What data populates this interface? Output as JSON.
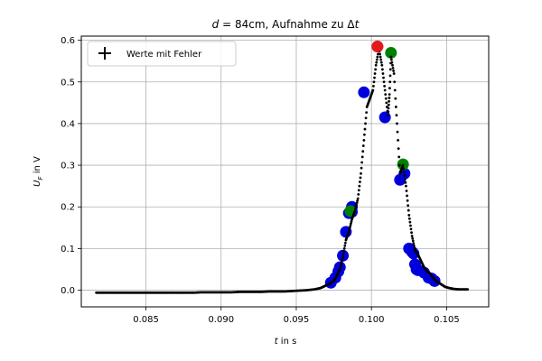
{
  "chart_data": {
    "type": "scatter",
    "title": {
      "var": "d",
      "text": " = 84cm, Aufnahme zu Δ",
      "var2": "t"
    },
    "xlabel": {
      "var": "t",
      "text": " in s"
    },
    "ylabel": {
      "var": "U",
      "sub": "F",
      "text": " in V"
    },
    "xlim": [
      0.0807,
      0.1078
    ],
    "ylim": [
      -0.04,
      0.61
    ],
    "xticks": [
      0.085,
      0.09,
      0.095,
      0.1,
      0.105
    ],
    "xtick_labels": [
      "0.085",
      "0.090",
      "0.095",
      "0.100",
      "0.105"
    ],
    "yticks": [
      0.0,
      0.1,
      0.2,
      0.3,
      0.4,
      0.5,
      0.6
    ],
    "ytick_labels": [
      "0.0",
      "0.1",
      "0.2",
      "0.3",
      "0.4",
      "0.5",
      "0.6"
    ],
    "grid": true,
    "legend": {
      "placement": "top-left",
      "label": "Werte mit Fehler"
    },
    "colors": {
      "data": "#000000",
      "blue": "#0000dd",
      "green": "#008000",
      "red": "#e31a1c",
      "grid": "#b0b0b0"
    },
    "series": [
      {
        "name": "Werte mit Fehler",
        "role": "errorbar-points",
        "color": "#000000",
        "points": [
          [
            0.0817,
            -0.006
          ],
          [
            0.0822,
            -0.006
          ],
          [
            0.0827,
            -0.006
          ],
          [
            0.0832,
            -0.006
          ],
          [
            0.0837,
            -0.006
          ],
          [
            0.0842,
            -0.006
          ],
          [
            0.0847,
            -0.006
          ],
          [
            0.0852,
            -0.006
          ],
          [
            0.0857,
            -0.006
          ],
          [
            0.0862,
            -0.006
          ],
          [
            0.0867,
            -0.006
          ],
          [
            0.0872,
            -0.006
          ],
          [
            0.0877,
            -0.006
          ],
          [
            0.0882,
            -0.006
          ],
          [
            0.0887,
            -0.005
          ],
          [
            0.0892,
            -0.005
          ],
          [
            0.0897,
            -0.005
          ],
          [
            0.0902,
            -0.005
          ],
          [
            0.0907,
            -0.005
          ],
          [
            0.0912,
            -0.004
          ],
          [
            0.0917,
            -0.004
          ],
          [
            0.0922,
            -0.004
          ],
          [
            0.0927,
            -0.004
          ],
          [
            0.0932,
            -0.003
          ],
          [
            0.0937,
            -0.003
          ],
          [
            0.0942,
            -0.003
          ],
          [
            0.0947,
            -0.002
          ],
          [
            0.0952,
            -0.001
          ],
          [
            0.0957,
            0.0
          ],
          [
            0.0962,
            0.002
          ],
          [
            0.0966,
            0.005
          ],
          [
            0.0969,
            0.01
          ],
          [
            0.0972,
            0.015
          ],
          [
            0.0975,
            0.022
          ],
          [
            0.0977,
            0.035
          ],
          [
            0.0979,
            0.05
          ],
          [
            0.0981,
            0.08
          ],
          [
            0.0983,
            0.12
          ],
          [
            0.0985,
            0.14
          ],
          [
            0.0987,
            0.17
          ],
          [
            0.0989,
            0.19
          ],
          [
            0.0991,
            0.22
          ],
          [
            0.0993,
            0.28
          ],
          [
            0.0995,
            0.36
          ],
          [
            0.0997,
            0.44
          ],
          [
            0.0999,
            0.46
          ],
          [
            0.1001,
            0.48
          ],
          [
            0.1003,
            0.54
          ],
          [
            0.1005,
            0.58
          ],
          [
            0.1007,
            0.54
          ],
          [
            0.1009,
            0.48
          ],
          [
            0.1011,
            0.42
          ],
          [
            0.1012,
            0.47
          ],
          [
            0.1013,
            0.56
          ],
          [
            0.1015,
            0.52
          ],
          [
            0.1017,
            0.4
          ],
          [
            0.1019,
            0.28
          ],
          [
            0.1021,
            0.3
          ],
          [
            0.1023,
            0.25
          ],
          [
            0.1025,
            0.18
          ],
          [
            0.1027,
            0.13
          ],
          [
            0.1029,
            0.095
          ],
          [
            0.1031,
            0.085
          ],
          [
            0.1033,
            0.07
          ],
          [
            0.1035,
            0.055
          ],
          [
            0.1037,
            0.045
          ],
          [
            0.1039,
            0.04
          ],
          [
            0.1041,
            0.03
          ],
          [
            0.1043,
            0.022
          ],
          [
            0.1046,
            0.015
          ],
          [
            0.1049,
            0.008
          ],
          [
            0.1052,
            0.005
          ],
          [
            0.1055,
            0.003
          ],
          [
            0.1058,
            0.002
          ],
          [
            0.1061,
            0.002
          ],
          [
            0.1064,
            0.002
          ]
        ]
      },
      {
        "name": "",
        "role": "markers",
        "color": "#0000dd",
        "points": [
          [
            0.0973,
            0.018
          ],
          [
            0.0976,
            0.03
          ],
          [
            0.0978,
            0.045
          ],
          [
            0.0979,
            0.055
          ],
          [
            0.0981,
            0.083
          ],
          [
            0.0983,
            0.14
          ],
          [
            0.0985,
            0.185
          ],
          [
            0.0987,
            0.188
          ],
          [
            0.0987,
            0.2
          ],
          [
            0.0995,
            0.475
          ],
          [
            0.1009,
            0.415
          ],
          [
            0.1019,
            0.265
          ],
          [
            0.1022,
            0.28
          ],
          [
            0.1025,
            0.1
          ],
          [
            0.1027,
            0.092
          ],
          [
            0.1028,
            0.088
          ],
          [
            0.1029,
            0.062
          ],
          [
            0.103,
            0.05
          ],
          [
            0.1031,
            0.048
          ],
          [
            0.1035,
            0.042
          ],
          [
            0.1038,
            0.03
          ],
          [
            0.104,
            0.028
          ],
          [
            0.1042,
            0.022
          ]
        ]
      },
      {
        "name": "",
        "role": "markers",
        "color": "#008000",
        "points": [
          [
            0.0986,
            0.19
          ],
          [
            0.1013,
            0.57
          ],
          [
            0.1021,
            0.302
          ]
        ]
      },
      {
        "name": "",
        "role": "markers",
        "color": "#e31a1c",
        "points": [
          [
            0.1004,
            0.585
          ]
        ]
      }
    ]
  }
}
